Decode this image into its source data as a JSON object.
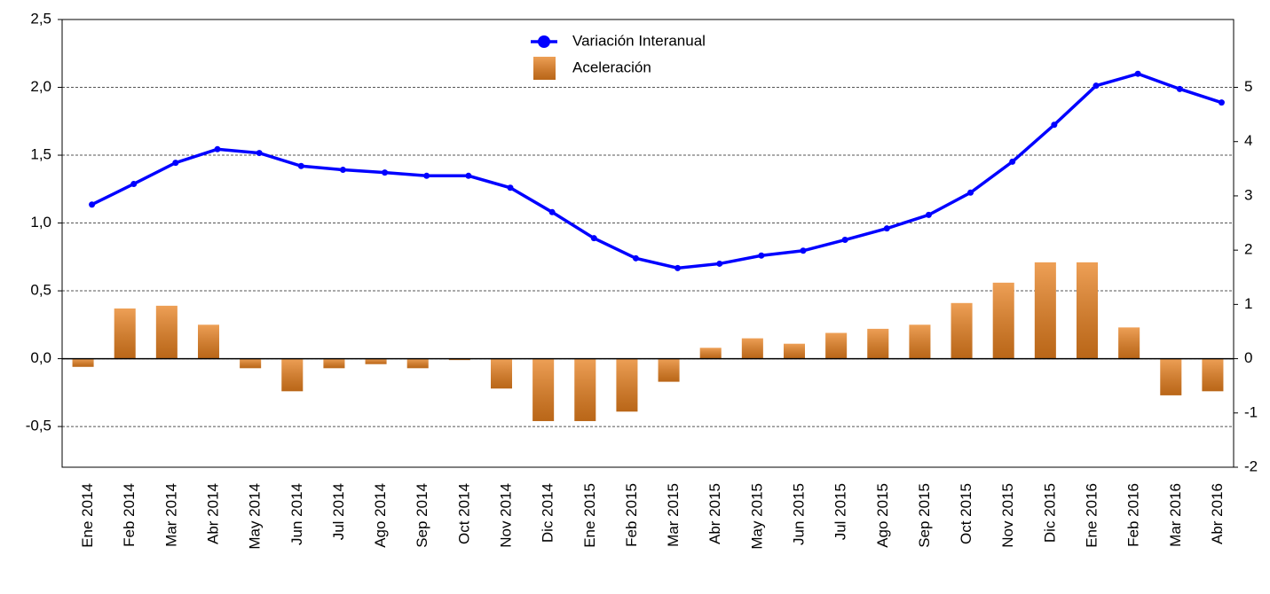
{
  "chart_data": {
    "type": "bar-line",
    "categories": [
      "Ene 2014",
      "Feb 2014",
      "Mar 2014",
      "Abr 2014",
      "May 2014",
      "Jun 2014",
      "Jul 2014",
      "Ago 2014",
      "Sep 2014",
      "Oct 2014",
      "Nov 2014",
      "Dic 2014",
      "Ene 2015",
      "Feb 2015",
      "Mar 2015",
      "Abr 2015",
      "May 2015",
      "Jun 2015",
      "Jul 2015",
      "Ago 2015",
      "Sep 2015",
      "Oct 2015",
      "Nov 2015",
      "Dic 2015",
      "Ene 2016",
      "Feb 2016",
      "Mar 2016",
      "Abr 2016"
    ],
    "series": [
      {
        "name": "Variación Interanual",
        "type": "line",
        "axis": "y2",
        "color": "#0000ff",
        "values": [
          2.84,
          3.22,
          3.61,
          3.86,
          3.79,
          3.55,
          3.48,
          3.43,
          3.37,
          3.37,
          3.15,
          2.7,
          2.22,
          1.85,
          1.67,
          1.75,
          1.9,
          1.99,
          2.19,
          2.4,
          2.65,
          3.06,
          3.63,
          4.31,
          5.03,
          5.25,
          4.97,
          4.72
        ]
      },
      {
        "name": "Aceleración",
        "type": "bar",
        "color": "#e8801e",
        "values": [
          -0.06,
          0.37,
          0.39,
          0.25,
          -0.07,
          -0.24,
          -0.07,
          -0.04,
          -0.07,
          -0.01,
          -0.22,
          -0.46,
          -0.46,
          -0.39,
          -0.17,
          0.08,
          0.15,
          0.11,
          0.19,
          0.22,
          0.25,
          0.41,
          0.56,
          0.71,
          0.71,
          0.23,
          -0.27,
          -0.24
        ]
      }
    ],
    "ylim": [
      -0.8,
      2.5
    ],
    "yticks": [
      {
        "value": -0.5,
        "label": "-0,5"
      },
      {
        "value": 0,
        "label": "0,0"
      },
      {
        "value": 0.5,
        "label": "0,5"
      },
      {
        "value": 1,
        "label": "1,0"
      },
      {
        "value": 1.5,
        "label": "1,5"
      },
      {
        "value": 2,
        "label": "2,0"
      },
      {
        "value": 2.5,
        "label": "2,5"
      }
    ],
    "y2lim": [
      -2,
      6.25
    ],
    "y2ticks": [
      -2,
      -1,
      0,
      1,
      2,
      3,
      4,
      5
    ],
    "grid": true
  }
}
